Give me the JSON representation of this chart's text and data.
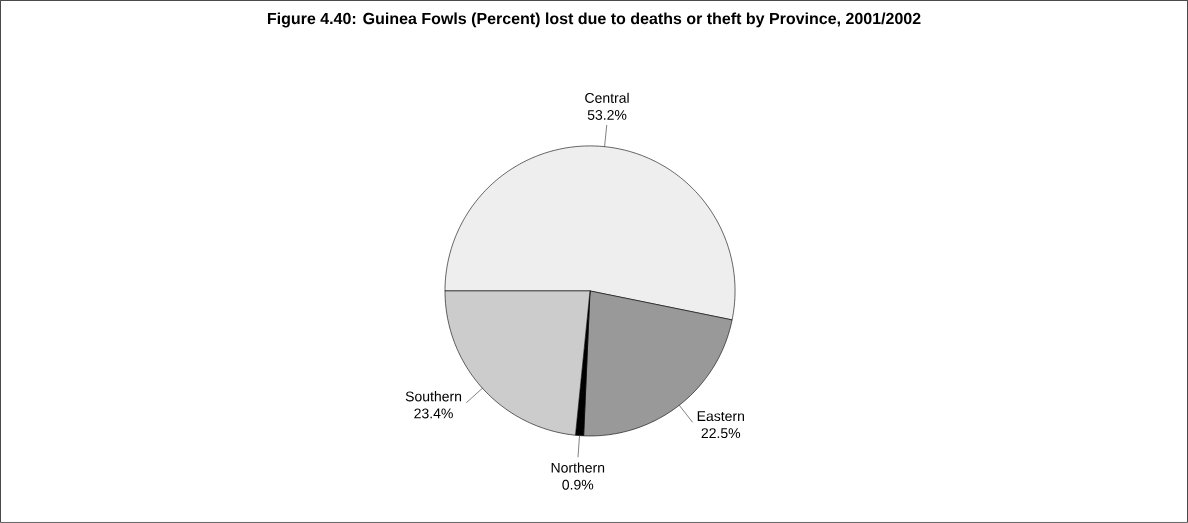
{
  "chart_data": {
    "type": "pie",
    "title": "Figure 4.40: Guinea Fowls (Percent) lost due to deaths or theft by Province, 2001/2002",
    "categories": [
      "Central",
      "Eastern",
      "Northern",
      "Southern"
    ],
    "values": [
      53.2,
      22.5,
      0.9,
      23.4
    ],
    "value_labels": [
      "53.2%",
      "22.5%",
      "0.9%",
      "23.4%"
    ],
    "colors": [
      "#eeeeee",
      "#999999",
      "#000000",
      "#cccccc"
    ]
  }
}
